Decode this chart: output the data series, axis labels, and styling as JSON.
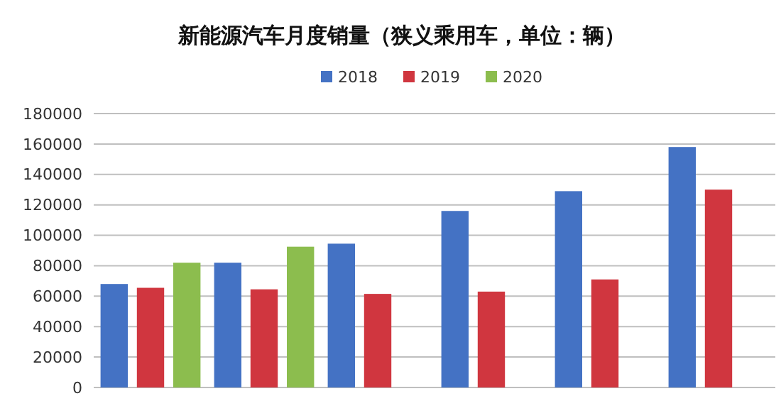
{
  "chart_data": {
    "type": "bar",
    "title": "新能源汽车月度销量（狭义乘用车，单位：辆）",
    "categories": [
      null,
      null,
      null,
      null,
      null,
      null
    ],
    "series": [
      {
        "name": "2018",
        "color": "#4472c4",
        "values": [
          68000,
          82000,
          94500,
          116000,
          129000,
          158000
        ]
      },
      {
        "name": "2019",
        "color": "#d0363f",
        "values": [
          65500,
          64500,
          61500,
          63000,
          71000,
          130000
        ]
      },
      {
        "name": "2020",
        "color": "#8cbd4e",
        "values": [
          82000,
          92500,
          null,
          null,
          null,
          null
        ]
      }
    ],
    "ylim": [
      0,
      180000
    ],
    "yticks": [
      0,
      20000,
      40000,
      60000,
      80000,
      100000,
      120000,
      140000,
      160000,
      180000
    ],
    "grid": "y",
    "legend": "top"
  }
}
